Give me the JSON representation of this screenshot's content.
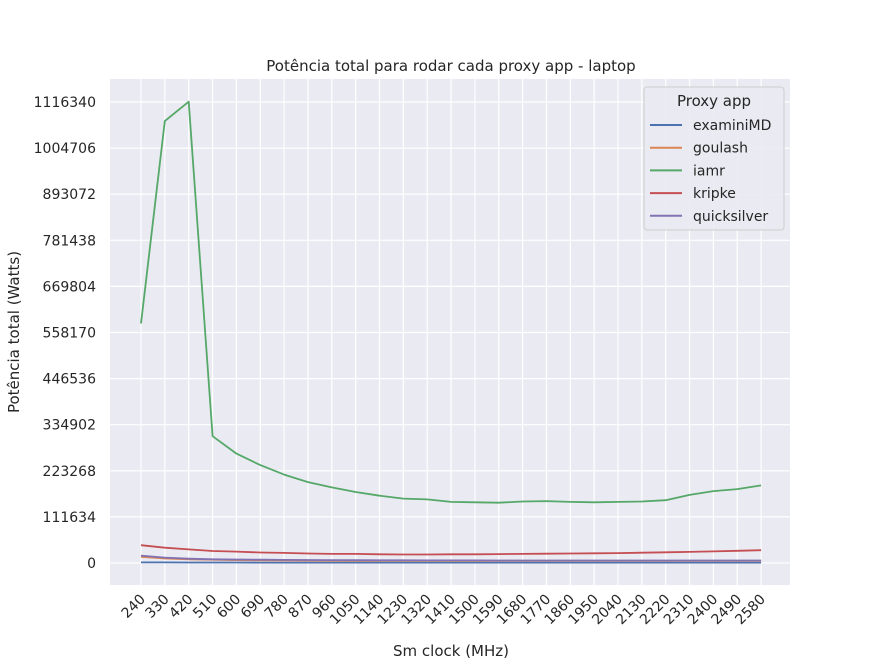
{
  "chart_data": {
    "type": "line",
    "title": "Potência total para rodar cada proxy app - laptop",
    "xlabel": "Sm clock (MHz)",
    "ylabel": "Potência total (Watts)",
    "x": [
      240,
      330,
      420,
      510,
      600,
      690,
      780,
      870,
      960,
      1050,
      1140,
      1230,
      1320,
      1410,
      1500,
      1590,
      1680,
      1770,
      1860,
      1950,
      2040,
      2130,
      2220,
      2310,
      2400,
      2490,
      2580
    ],
    "yticks": [
      0,
      111634,
      223268,
      334902,
      446536,
      558170,
      669804,
      781438,
      893072,
      1004706,
      1116340
    ],
    "ylim": [
      -50000,
      1175000
    ],
    "grid": true,
    "legend": {
      "title": "Proxy app",
      "placement": "top-right"
    },
    "series": [
      {
        "name": "examiniMD",
        "color": "#4c72b0",
        "values": [
          1500,
          1400,
          1300,
          1200,
          1100,
          1050,
          1000,
          1000,
          1000,
          1000,
          1000,
          1000,
          1000,
          1000,
          1000,
          1000,
          1000,
          1000,
          1000,
          1000,
          1000,
          1000,
          1000,
          1000,
          1000,
          1000,
          1000
        ]
      },
      {
        "name": "goulash",
        "color": "#dd8452",
        "values": [
          15000,
          11000,
          9000,
          8000,
          7000,
          6500,
          6000,
          5800,
          5500,
          5300,
          5100,
          5000,
          5000,
          5000,
          5000,
          5000,
          5000,
          5000,
          5000,
          5000,
          5000,
          5000,
          5000,
          5000,
          5000,
          5000,
          5000
        ]
      },
      {
        "name": "iamr",
        "color": "#55a868",
        "values": [
          580000,
          1070000,
          1117000,
          307000,
          265000,
          237000,
          214000,
          196000,
          183000,
          172000,
          163000,
          156000,
          154000,
          148000,
          147000,
          146000,
          149000,
          150000,
          148000,
          147000,
          148000,
          149000,
          152000,
          165000,
          174000,
          179000,
          188000
        ]
      },
      {
        "name": "kripke",
        "color": "#c44e52",
        "values": [
          43000,
          37000,
          33000,
          29000,
          27500,
          25500,
          24500,
          23000,
          22000,
          22000,
          21000,
          20500,
          20500,
          21000,
          21000,
          21500,
          22000,
          22500,
          23000,
          23500,
          24000,
          25000,
          26000,
          27000,
          28000,
          29500,
          31000
        ]
      },
      {
        "name": "quicksilver",
        "color": "#8172b3",
        "values": [
          18000,
          13000,
          10500,
          9000,
          8500,
          8000,
          7500,
          7200,
          7000,
          6800,
          6600,
          6500,
          6400,
          6300,
          6200,
          6100,
          6100,
          6000,
          6000,
          6000,
          6000,
          6000,
          6000,
          6000,
          6000,
          6000,
          6000
        ]
      }
    ]
  }
}
